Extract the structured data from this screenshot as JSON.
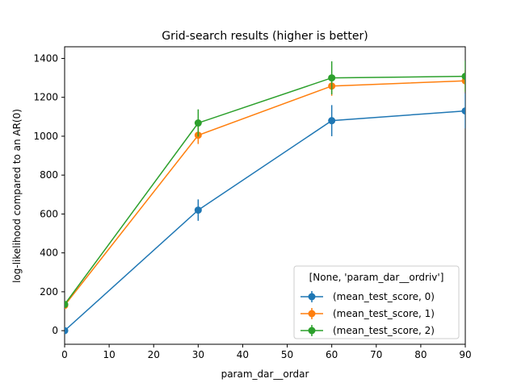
{
  "chart_data": {
    "type": "line",
    "title": "Grid-search results (higher is better)",
    "xlabel": "param_dar__ordar",
    "ylabel": "log-likelihood compared to an AR(0)",
    "xlim": [
      0,
      90
    ],
    "ylim": [
      -70,
      1460
    ],
    "xticks": [
      0,
      10,
      20,
      30,
      40,
      50,
      60,
      70,
      80,
      90
    ],
    "yticks": [
      0,
      200,
      400,
      600,
      800,
      1000,
      1200,
      1400
    ],
    "grid": false,
    "legend": {
      "title": "[None, 'param_dar__ordriv']",
      "placement": "lower-right"
    },
    "x": [
      0,
      30,
      60,
      90
    ],
    "series": [
      {
        "name": "(mean_test_score, 0)",
        "color": "#1f77b4",
        "values": [
          0,
          620,
          1080,
          1130
        ],
        "errors": [
          0,
          55,
          80,
          90
        ]
      },
      {
        "name": "(mean_test_score, 1)",
        "color": "#ff7f0e",
        "values": [
          130,
          1005,
          1258,
          1285
        ],
        "errors": [
          10,
          45,
          50,
          55
        ]
      },
      {
        "name": "(mean_test_score, 2)",
        "color": "#2ca02c",
        "values": [
          135,
          1068,
          1300,
          1308
        ],
        "errors": [
          10,
          70,
          85,
          80
        ]
      }
    ]
  }
}
